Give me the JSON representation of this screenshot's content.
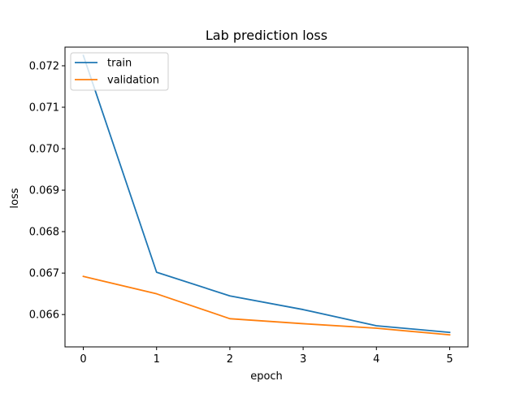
{
  "chart_data": {
    "type": "line",
    "title": "Lab prediction loss",
    "xlabel": "epoch",
    "ylabel": "loss",
    "x": [
      0,
      1,
      2,
      3,
      4,
      5
    ],
    "xlim": [
      -0.25,
      5.25
    ],
    "ylim": [
      0.06522,
      0.07245
    ],
    "xticks": [
      0,
      1,
      2,
      3,
      4,
      5
    ],
    "yticks": [
      0.066,
      0.067,
      0.068,
      0.069,
      0.07,
      0.071,
      0.072
    ],
    "xtick_labels": [
      "0",
      "1",
      "2",
      "3",
      "4",
      "5"
    ],
    "ytick_labels": [
      "0.066",
      "0.067",
      "0.068",
      "0.069",
      "0.070",
      "0.071",
      "0.072"
    ],
    "grid": false,
    "legend_position": "upper-left",
    "series": [
      {
        "name": "train",
        "color": "#1f77b4",
        "values": [
          0.07225,
          0.06702,
          0.06645,
          0.06612,
          0.06573,
          0.06557
        ]
      },
      {
        "name": "validation",
        "color": "#ff7f0e",
        "values": [
          0.06692,
          0.0665,
          0.0659,
          0.06578,
          0.06567,
          0.06551
        ]
      }
    ]
  }
}
